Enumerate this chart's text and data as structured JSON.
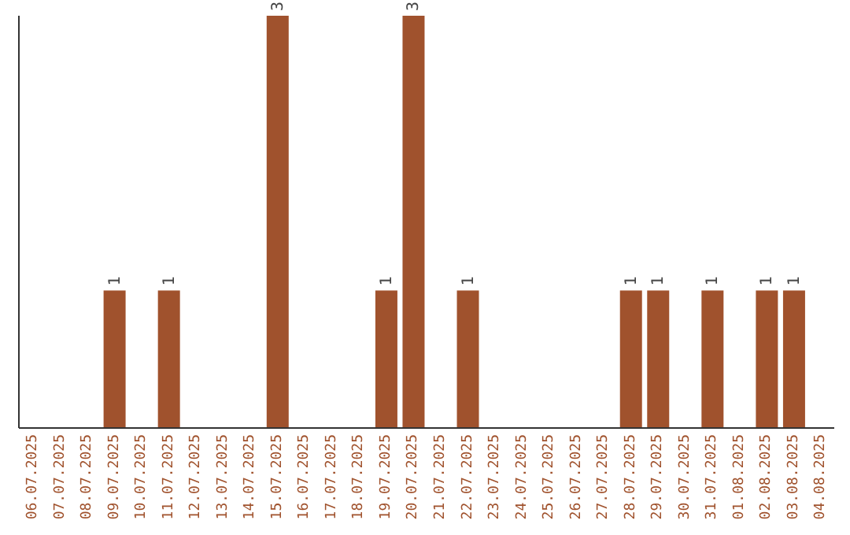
{
  "chart_data": {
    "type": "bar",
    "categories": [
      "06.07.2025",
      "07.07.2025",
      "08.07.2025",
      "09.07.2025",
      "10.07.2025",
      "11.07.2025",
      "12.07.2025",
      "13.07.2025",
      "14.07.2025",
      "15.07.2025",
      "16.07.2025",
      "17.07.2025",
      "18.07.2025",
      "19.07.2025",
      "20.07.2025",
      "21.07.2025",
      "22.07.2025",
      "23.07.2025",
      "24.07.2025",
      "25.07.2025",
      "26.07.2025",
      "27.07.2025",
      "28.07.2025",
      "29.07.2025",
      "30.07.2025",
      "31.07.2025",
      "01.08.2025",
      "02.08.2025",
      "03.08.2025",
      "04.08.2025"
    ],
    "values": [
      0,
      0,
      0,
      1,
      0,
      1,
      0,
      0,
      0,
      3,
      0,
      0,
      0,
      1,
      3,
      0,
      1,
      0,
      0,
      0,
      0,
      0,
      1,
      1,
      0,
      1,
      0,
      1,
      1,
      0
    ],
    "value_labels": [
      null,
      null,
      null,
      "1",
      null,
      "1",
      null,
      null,
      null,
      "3",
      null,
      null,
      null,
      "1",
      "3",
      null,
      "1",
      null,
      null,
      null,
      null,
      null,
      "1",
      "1",
      null,
      "1",
      null,
      "1",
      "1",
      null
    ],
    "color": "#a0522d",
    "ylim": [
      0,
      3
    ],
    "tick_labels": "x",
    "grid": false
  }
}
